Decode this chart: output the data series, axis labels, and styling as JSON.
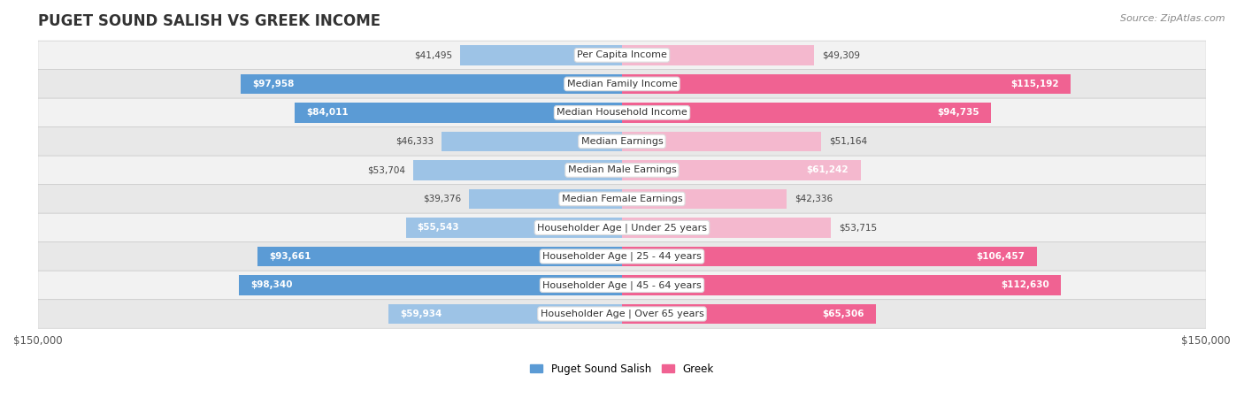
{
  "title": "PUGET SOUND SALISH VS GREEK INCOME",
  "source": "Source: ZipAtlas.com",
  "categories": [
    "Per Capita Income",
    "Median Family Income",
    "Median Household Income",
    "Median Earnings",
    "Median Male Earnings",
    "Median Female Earnings",
    "Householder Age | Under 25 years",
    "Householder Age | 25 - 44 years",
    "Householder Age | 45 - 64 years",
    "Householder Age | Over 65 years"
  ],
  "left_values": [
    41495,
    97958,
    84011,
    46333,
    53704,
    39376,
    55543,
    93661,
    98340,
    59934
  ],
  "right_values": [
    49309,
    115192,
    94735,
    51164,
    61242,
    42336,
    53715,
    106457,
    112630,
    65306
  ],
  "left_labels": [
    "$41,495",
    "$97,958",
    "$84,011",
    "$46,333",
    "$53,704",
    "$39,376",
    "$55,543",
    "$93,661",
    "$98,340",
    "$59,934"
  ],
  "right_labels": [
    "$49,309",
    "$115,192",
    "$94,735",
    "$51,164",
    "$61,242",
    "$42,336",
    "$53,715",
    "$106,457",
    "$112,630",
    "$65,306"
  ],
  "left_color_full": "#5b9bd5",
  "left_color_light": "#9dc3e6",
  "right_color_full": "#f06292",
  "right_color_light": "#f4b8ce",
  "fig_bg": "#ffffff",
  "row_bg_light": "#f2f2f2",
  "row_bg_dark": "#e8e8e8",
  "axis_limit": 150000,
  "legend_left": "Puget Sound Salish",
  "legend_right": "Greek",
  "title_fontsize": 12,
  "source_fontsize": 8,
  "category_fontsize": 8,
  "value_fontsize": 7.5,
  "full_color_threshold": 65000
}
